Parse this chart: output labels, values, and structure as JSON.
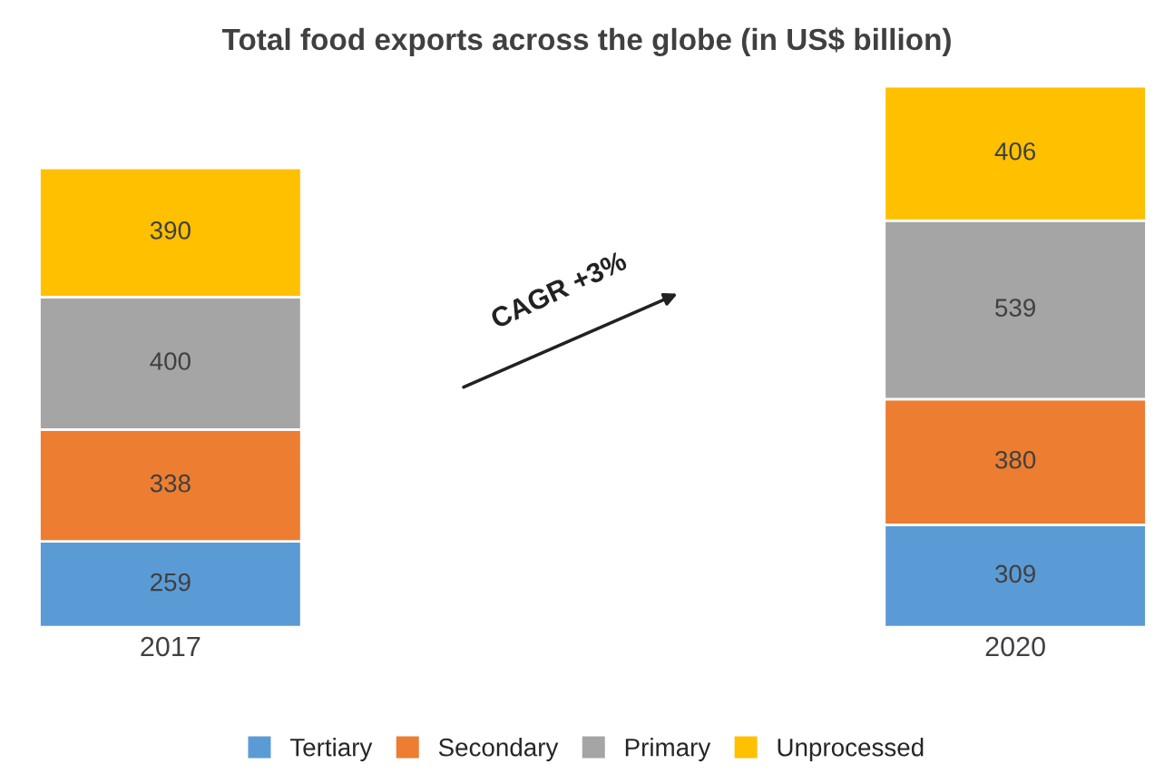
{
  "chart_data": {
    "type": "bar",
    "title": "Total food exports across the globe (in US$ billion)",
    "categories": [
      "2017",
      "2020"
    ],
    "stacked": true,
    "data_labels": true,
    "legend": "bottom",
    "grid": false,
    "series": [
      {
        "name": "Tertiary",
        "color": "#5b9bd5",
        "values": [
          259,
          309
        ]
      },
      {
        "name": "Secondary",
        "color": "#ed7d31",
        "values": [
          338,
          380
        ]
      },
      {
        "name": "Primary",
        "color": "#a5a5a5",
        "values": [
          400,
          539
        ]
      },
      {
        "name": "Unprocessed",
        "color": "#ffc000",
        "values": [
          390,
          406
        ]
      }
    ],
    "annotations": [
      "CAGR +3%"
    ]
  }
}
